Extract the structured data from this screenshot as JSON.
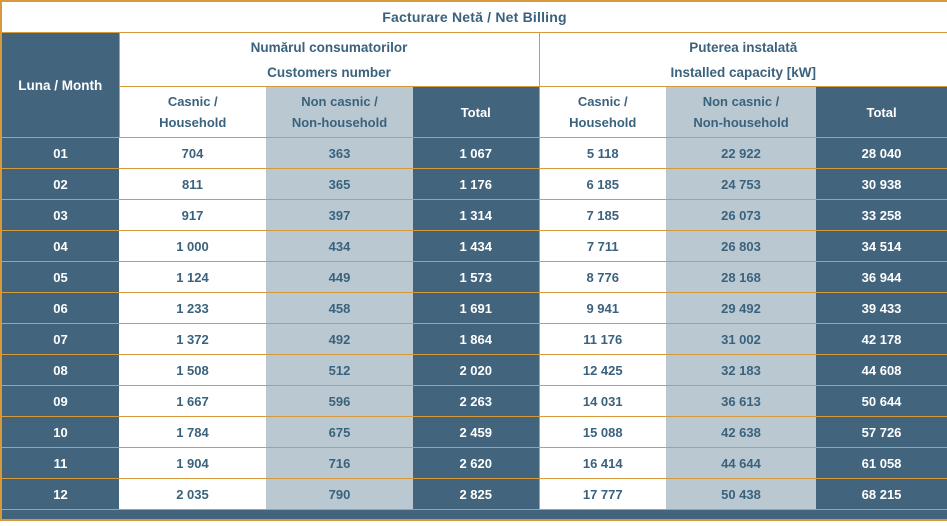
{
  "title": "Facturare Netă / Net Billing",
  "headers": {
    "month": "Luna / Month",
    "groups": [
      {
        "line1": "Numărul consumatorilor",
        "line2": "Customers number"
      },
      {
        "line1": "Puterea instalată",
        "line2": "Installed capacity [kW]"
      }
    ],
    "sub": {
      "household": {
        "line1": "Casnic /",
        "line2": "Household"
      },
      "non_household": {
        "line1": "Non casnic /",
        "line2": "Non-household"
      },
      "total": "Total"
    }
  },
  "rows": [
    {
      "month": "01",
      "cust_household": "704",
      "cust_non_household": "363",
      "cust_total": "1 067",
      "cap_household": "5 118",
      "cap_non_household": "22 922",
      "cap_total": "28 040"
    },
    {
      "month": "02",
      "cust_household": "811",
      "cust_non_household": "365",
      "cust_total": "1 176",
      "cap_household": "6 185",
      "cap_non_household": "24 753",
      "cap_total": "30 938"
    },
    {
      "month": "03",
      "cust_household": "917",
      "cust_non_household": "397",
      "cust_total": "1 314",
      "cap_household": "7 185",
      "cap_non_household": "26 073",
      "cap_total": "33 258"
    },
    {
      "month": "04",
      "cust_household": "1 000",
      "cust_non_household": "434",
      "cust_total": "1 434",
      "cap_household": "7 711",
      "cap_non_household": "26 803",
      "cap_total": "34 514"
    },
    {
      "month": "05",
      "cust_household": "1 124",
      "cust_non_household": "449",
      "cust_total": "1 573",
      "cap_household": "8 776",
      "cap_non_household": "28 168",
      "cap_total": "36 944"
    },
    {
      "month": "06",
      "cust_household": "1 233",
      "cust_non_household": "458",
      "cust_total": "1 691",
      "cap_household": "9 941",
      "cap_non_household": "29 492",
      "cap_total": "39 433"
    },
    {
      "month": "07",
      "cust_household": "1 372",
      "cust_non_household": "492",
      "cust_total": "1 864",
      "cap_household": "11 176",
      "cap_non_household": "31 002",
      "cap_total": "42 178"
    },
    {
      "month": "08",
      "cust_household": "1 508",
      "cust_non_household": "512",
      "cust_total": "2 020",
      "cap_household": "12 425",
      "cap_non_household": "32 183",
      "cap_total": "44 608"
    },
    {
      "month": "09",
      "cust_household": "1 667",
      "cust_non_household": "596",
      "cust_total": "2 263",
      "cap_household": "14 031",
      "cap_non_household": "36 613",
      "cap_total": "50 644"
    },
    {
      "month": "10",
      "cust_household": "1 784",
      "cust_non_household": "675",
      "cust_total": "2 459",
      "cap_household": "15 088",
      "cap_non_household": "42 638",
      "cap_total": "57 726"
    },
    {
      "month": "11",
      "cust_household": "1 904",
      "cust_non_household": "716",
      "cust_total": "2 620",
      "cap_household": "16 414",
      "cap_non_household": "44 644",
      "cap_total": "61 058"
    },
    {
      "month": "12",
      "cust_household": "2 035",
      "cust_non_household": "790",
      "cust_total": "2 825",
      "cap_household": "17 777",
      "cap_non_household": "50 438",
      "cap_total": "68 215"
    }
  ],
  "colors": {
    "border_orange": "#D6993B",
    "dark_slate": "#42647C",
    "light_blue_gray": "#BAC8D1",
    "text_dark": "#3A627D"
  }
}
